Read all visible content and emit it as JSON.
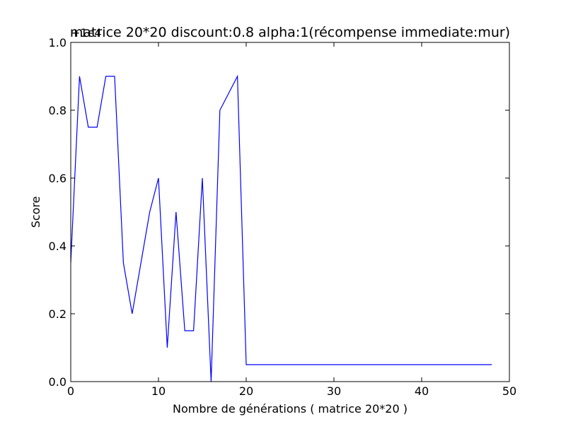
{
  "chart_data": {
    "type": "line",
    "title": "matrice 20*20 discount:0.8 alpha:1(récompense immediate:mur)",
    "xlabel": "Nombre de générations ( matrice 20*20 )",
    "ylabel": "Score",
    "y_offset_label": "+1e4",
    "xlim": [
      0,
      50
    ],
    "ylim": [
      0.0,
      1.0
    ],
    "xticks": [
      0,
      10,
      20,
      30,
      40,
      50
    ],
    "yticks": [
      0.0,
      0.2,
      0.4,
      0.6,
      0.8,
      1.0
    ],
    "xtick_labels": [
      "0",
      "10",
      "20",
      "30",
      "40",
      "50"
    ],
    "ytick_labels": [
      "0.0",
      "0.2",
      "0.4",
      "0.6",
      "0.8",
      "1.0"
    ],
    "grid": false,
    "line_color": "#0000ff",
    "series": [
      {
        "x": [
          0,
          1,
          2,
          3,
          4,
          5,
          6,
          7,
          8,
          9,
          10,
          11,
          12,
          13,
          14,
          15,
          16,
          17,
          18,
          19,
          20,
          21,
          22,
          23,
          24,
          25,
          26,
          27,
          28,
          29,
          30,
          31,
          32,
          33,
          34,
          35,
          36,
          37,
          38,
          39,
          40,
          41,
          42,
          43,
          44,
          45,
          46,
          47,
          48
        ],
        "values": [
          0.35,
          0.9,
          0.75,
          0.75,
          0.9,
          0.9,
          0.35,
          0.2,
          0.35,
          0.5,
          0.6,
          0.1,
          0.5,
          0.15,
          0.15,
          0.6,
          0.0,
          0.8,
          0.85,
          0.9,
          0.05,
          0.05,
          0.05,
          0.05,
          0.05,
          0.05,
          0.05,
          0.05,
          0.05,
          0.05,
          0.05,
          0.05,
          0.05,
          0.05,
          0.05,
          0.05,
          0.05,
          0.05,
          0.05,
          0.05,
          0.05,
          0.05,
          0.05,
          0.05,
          0.05,
          0.05,
          0.05,
          0.05,
          0.05
        ]
      }
    ]
  }
}
